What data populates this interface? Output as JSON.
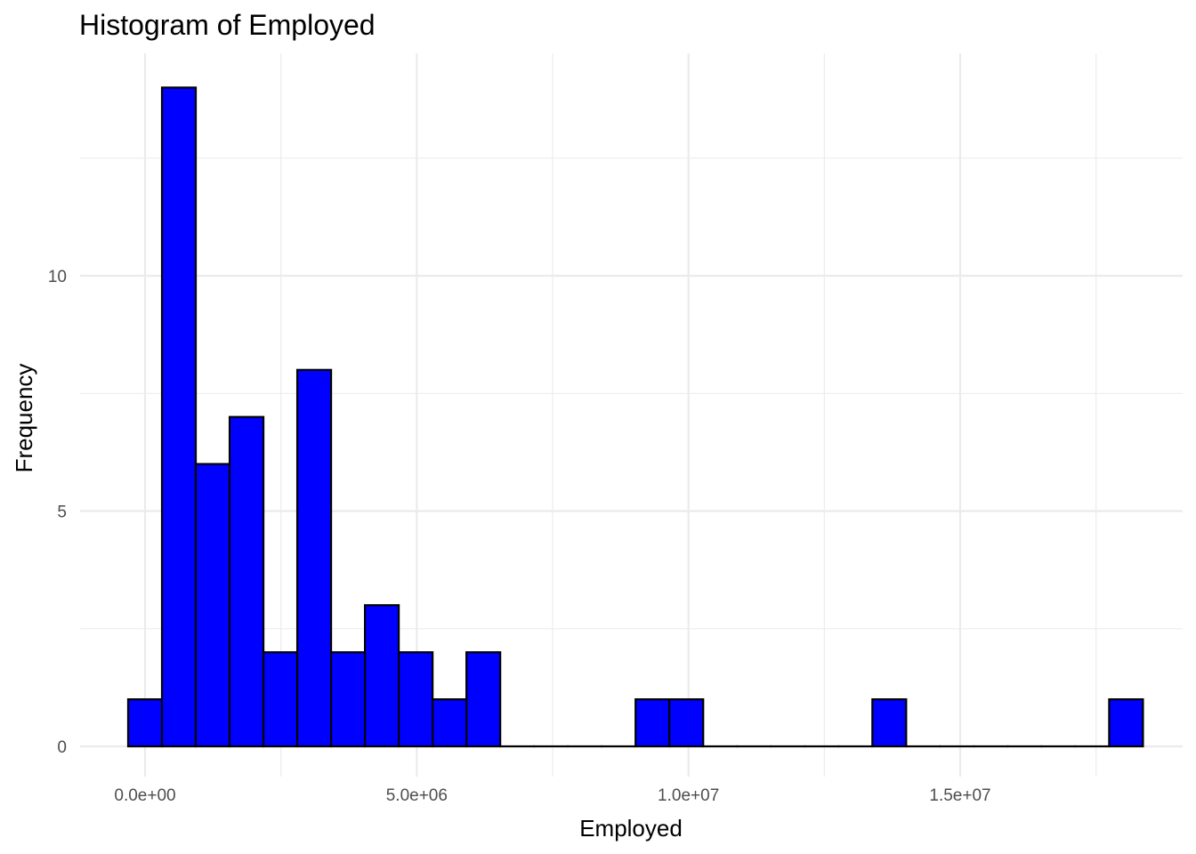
{
  "chart_data": {
    "type": "bar",
    "title": "Histogram of Employed",
    "xlabel": "Employed",
    "ylabel": "Frequency",
    "bar_color": "#0000ff",
    "bar_outline_color": "#000000",
    "grid": true,
    "bin_width": 622500,
    "bin_edges_start": -311250,
    "xlim": [
      -311250,
      18363750
    ],
    "ylim": [
      0,
      14
    ],
    "x_ticks": [
      {
        "value": 0,
        "label": "0.0e+00"
      },
      {
        "value": 5000000,
        "label": "5.0e+06"
      },
      {
        "value": 10000000,
        "label": "1.0e+07"
      },
      {
        "value": 15000000,
        "label": "1.5e+07"
      }
    ],
    "y_ticks": [
      {
        "value": 0,
        "label": "0"
      },
      {
        "value": 5,
        "label": "5"
      },
      {
        "value": 10,
        "label": "10"
      }
    ],
    "bin_centers": [
      0,
      622500,
      1245000,
      1867500,
      2490000,
      3112500,
      3735000,
      4357500,
      4980000,
      5602500,
      6225000,
      6847500,
      7470000,
      8092500,
      8715000,
      9337500,
      9960000,
      10582500,
      11205000,
      11827500,
      12450000,
      13072500,
      13695000,
      14317500,
      14940000,
      15562500,
      16185000,
      16807500,
      17430000,
      18052500
    ],
    "values": [
      1,
      14,
      6,
      7,
      2,
      8,
      2,
      3,
      2,
      1,
      2,
      0,
      0,
      0,
      0,
      1,
      1,
      0,
      0,
      0,
      0,
      0,
      1,
      0,
      0,
      0,
      0,
      0,
      0,
      1
    ]
  }
}
